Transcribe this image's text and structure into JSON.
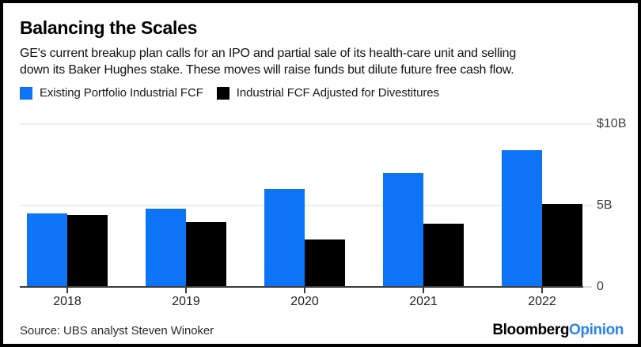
{
  "header": {
    "title": "Balancing the Scales",
    "subtitle_lines": [
      "GE's current breakup plan calls for an IPO and partial sale of its health-care unit and selling",
      "down its Baker Hughes stake. These moves will raise funds but dilute future free cash flow."
    ]
  },
  "legend": [
    {
      "label": "Existing Portfolio Industrial FCF",
      "color": "#0d73f7"
    },
    {
      "label": "Industrial FCF Adjusted for Divestitures",
      "color": "#000000"
    }
  ],
  "chart_data": {
    "type": "bar",
    "title": "Balancing the Scales",
    "categories": [
      "2018",
      "2019",
      "2020",
      "2021",
      "2022"
    ],
    "series": [
      {
        "name": "Existing Portfolio Industrial FCF",
        "color": "#0d73f7",
        "values": [
          4.5,
          4.8,
          6.0,
          7.0,
          8.4
        ]
      },
      {
        "name": "Industrial FCF Adjusted for Divestitures",
        "color": "#000000",
        "values": [
          4.4,
          4.0,
          2.9,
          3.9,
          5.1
        ]
      }
    ],
    "unit": "billions USD",
    "ylim": [
      0,
      10
    ],
    "y_ticks": [
      {
        "value": 10,
        "label": "$10B"
      },
      {
        "value": 5,
        "label": "5B"
      },
      {
        "value": 0,
        "label": "0"
      }
    ],
    "grid": "horizontal",
    "legend_position": "top-left",
    "colors": {
      "accent_blue": "#0d73f7",
      "bar_black": "#000000",
      "gridline": "#ececec"
    }
  },
  "footer": {
    "source": "Source: UBS analyst Steven Winoker",
    "brand": {
      "first": "Bloomberg",
      "second": "Opinion",
      "second_color": "#2b83ee"
    }
  }
}
